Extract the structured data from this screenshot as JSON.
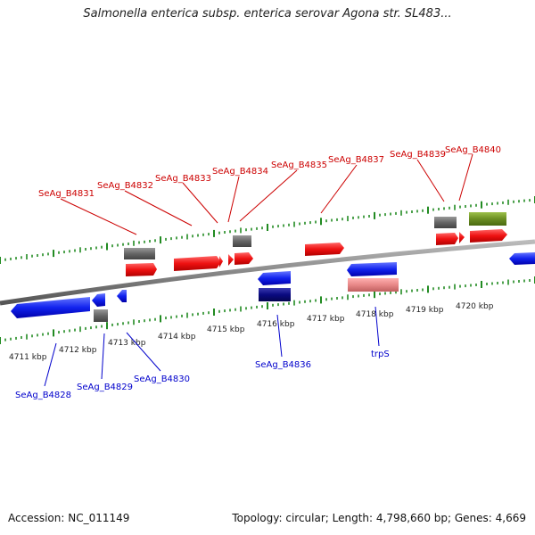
{
  "title": "Salmonella enterica subsp. enterica serovar Agona str. SL483...",
  "footer": {
    "accession": "Accession: NC_011149",
    "info": "Topology: circular; Length: 4,798,660 bp; Genes: 4,669"
  },
  "ticks": [
    "4711 kbp",
    "4712 kbp",
    "4713 kbp",
    "4714 kbp",
    "4715 kbp",
    "4716 kbp",
    "4717 kbp",
    "4718 kbp",
    "4719 kbp",
    "4720 kbp"
  ],
  "labels_forward": [
    "SeAg_B4831",
    "SeAg_B4832",
    "SeAg_B4833",
    "SeAg_B4834",
    "SeAg_B4835",
    "SeAg_B4837",
    "SeAg_B4839",
    "SeAg_B4840"
  ],
  "labels_reverse": [
    "SeAg_B4828",
    "SeAg_B4829",
    "SeAg_B4830",
    "SeAg_B4836",
    "trpS"
  ],
  "colors": {
    "forward_label": "#cc0000",
    "reverse_label": "#0000cc",
    "forward_cds": "#ee1111",
    "reverse_cds": "#1122ee",
    "gray_feature": "#666666",
    "olive_feature": "#6b8e23",
    "pink_feature": "#e88888",
    "navy_feature": "#0a0a80",
    "tick": "#228b22",
    "backbone": "#888888"
  }
}
